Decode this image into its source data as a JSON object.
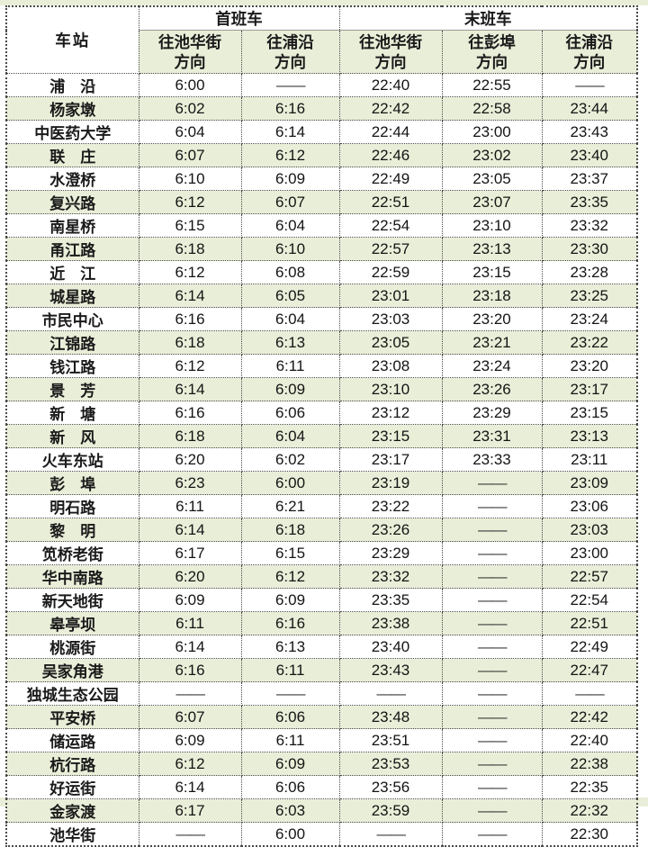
{
  "colors": {
    "row_green": "#e9eed8",
    "row_white": "#ffffff",
    "border": "#4a4a4a",
    "text": "#1a1a1a"
  },
  "table": {
    "station_header": "车站",
    "groups": [
      {
        "label": "首班车",
        "colspan": 2
      },
      {
        "label": "末班车",
        "colspan": 3
      }
    ],
    "directions": [
      {
        "line1": "往池华街",
        "line2": "方向"
      },
      {
        "line1": "往浦沿",
        "line2": "方向"
      },
      {
        "line1": "往池华街",
        "line2": "方向"
      },
      {
        "line1": "往彭埠",
        "line2": "方向"
      },
      {
        "line1": "往浦沿",
        "line2": "方向"
      }
    ],
    "no_service_mark": "——",
    "rows": [
      {
        "station": "浦　沿",
        "times": [
          "6:00",
          "——",
          "22:40",
          "22:55",
          "——"
        ]
      },
      {
        "station": "杨家墩",
        "times": [
          "6:02",
          "6:16",
          "22:42",
          "22:58",
          "23:44"
        ]
      },
      {
        "station": "中医药大学",
        "times": [
          "6:04",
          "6:14",
          "22:44",
          "23:00",
          "23:43"
        ]
      },
      {
        "station": "联　庄",
        "times": [
          "6:07",
          "6:12",
          "22:46",
          "23:02",
          "23:40"
        ]
      },
      {
        "station": "水澄桥",
        "times": [
          "6:10",
          "6:09",
          "22:49",
          "23:05",
          "23:37"
        ]
      },
      {
        "station": "复兴路",
        "times": [
          "6:12",
          "6:07",
          "22:51",
          "23:07",
          "23:35"
        ]
      },
      {
        "station": "南星桥",
        "times": [
          "6:15",
          "6:04",
          "22:54",
          "23:10",
          "23:32"
        ]
      },
      {
        "station": "甬江路",
        "times": [
          "6:18",
          "6:10",
          "22:57",
          "23:13",
          "23:30"
        ]
      },
      {
        "station": "近　江",
        "times": [
          "6:12",
          "6:08",
          "22:59",
          "23:15",
          "23:28"
        ]
      },
      {
        "station": "城星路",
        "times": [
          "6:14",
          "6:05",
          "23:01",
          "23:18",
          "23:25"
        ]
      },
      {
        "station": "市民中心",
        "times": [
          "6:16",
          "6:04",
          "23:03",
          "23:20",
          "23:24"
        ]
      },
      {
        "station": "江锦路",
        "times": [
          "6:18",
          "6:13",
          "23:05",
          "23:21",
          "23:22"
        ]
      },
      {
        "station": "钱江路",
        "times": [
          "6:12",
          "6:11",
          "23:08",
          "23:24",
          "23:20"
        ]
      },
      {
        "station": "景　芳",
        "times": [
          "6:14",
          "6:09",
          "23:10",
          "23:26",
          "23:17"
        ]
      },
      {
        "station": "新　塘",
        "times": [
          "6:16",
          "6:06",
          "23:12",
          "23:29",
          "23:15"
        ]
      },
      {
        "station": "新　风",
        "times": [
          "6:18",
          "6:04",
          "23:15",
          "23:31",
          "23:13"
        ]
      },
      {
        "station": "火车东站",
        "times": [
          "6:20",
          "6:02",
          "23:17",
          "23:33",
          "23:11"
        ]
      },
      {
        "station": "彭　埠",
        "times": [
          "6:23",
          "6:00",
          "23:19",
          "——",
          "23:09"
        ]
      },
      {
        "station": "明石路",
        "times": [
          "6:11",
          "6:21",
          "23:22",
          "——",
          "23:06"
        ]
      },
      {
        "station": "黎　明",
        "times": [
          "6:14",
          "6:18",
          "23:26",
          "——",
          "23:03"
        ]
      },
      {
        "station": "笕桥老街",
        "times": [
          "6:17",
          "6:15",
          "23:29",
          "——",
          "23:00"
        ]
      },
      {
        "station": "华中南路",
        "times": [
          "6:20",
          "6:12",
          "23:32",
          "——",
          "22:57"
        ]
      },
      {
        "station": "新天地街",
        "times": [
          "6:09",
          "6:09",
          "23:35",
          "——",
          "22:54"
        ]
      },
      {
        "station": "皋亭坝",
        "times": [
          "6:11",
          "6:16",
          "23:38",
          "——",
          "22:51"
        ]
      },
      {
        "station": "桃源街",
        "times": [
          "6:14",
          "6:13",
          "23:40",
          "——",
          "22:49"
        ]
      },
      {
        "station": "吴家角港",
        "times": [
          "6:16",
          "6:11",
          "23:43",
          "——",
          "22:47"
        ]
      },
      {
        "station": "独城生态公园",
        "times": [
          "——",
          "——",
          "——",
          "——",
          "——"
        ]
      },
      {
        "station": "平安桥",
        "times": [
          "6:07",
          "6:06",
          "23:48",
          "——",
          "22:42"
        ]
      },
      {
        "station": "储运路",
        "times": [
          "6:09",
          "6:11",
          "23:51",
          "——",
          "22:40"
        ]
      },
      {
        "station": "杭行路",
        "times": [
          "6:12",
          "6:09",
          "23:53",
          "——",
          "22:38"
        ]
      },
      {
        "station": "好运街",
        "times": [
          "6:14",
          "6:06",
          "23:56",
          "——",
          "22:35"
        ]
      },
      {
        "station": "金家渡",
        "times": [
          "6:17",
          "6:03",
          "23:59",
          "——",
          "22:32"
        ]
      },
      {
        "station": "池华街",
        "times": [
          "——",
          "6:00",
          "——",
          "——",
          "22:30"
        ]
      }
    ]
  }
}
